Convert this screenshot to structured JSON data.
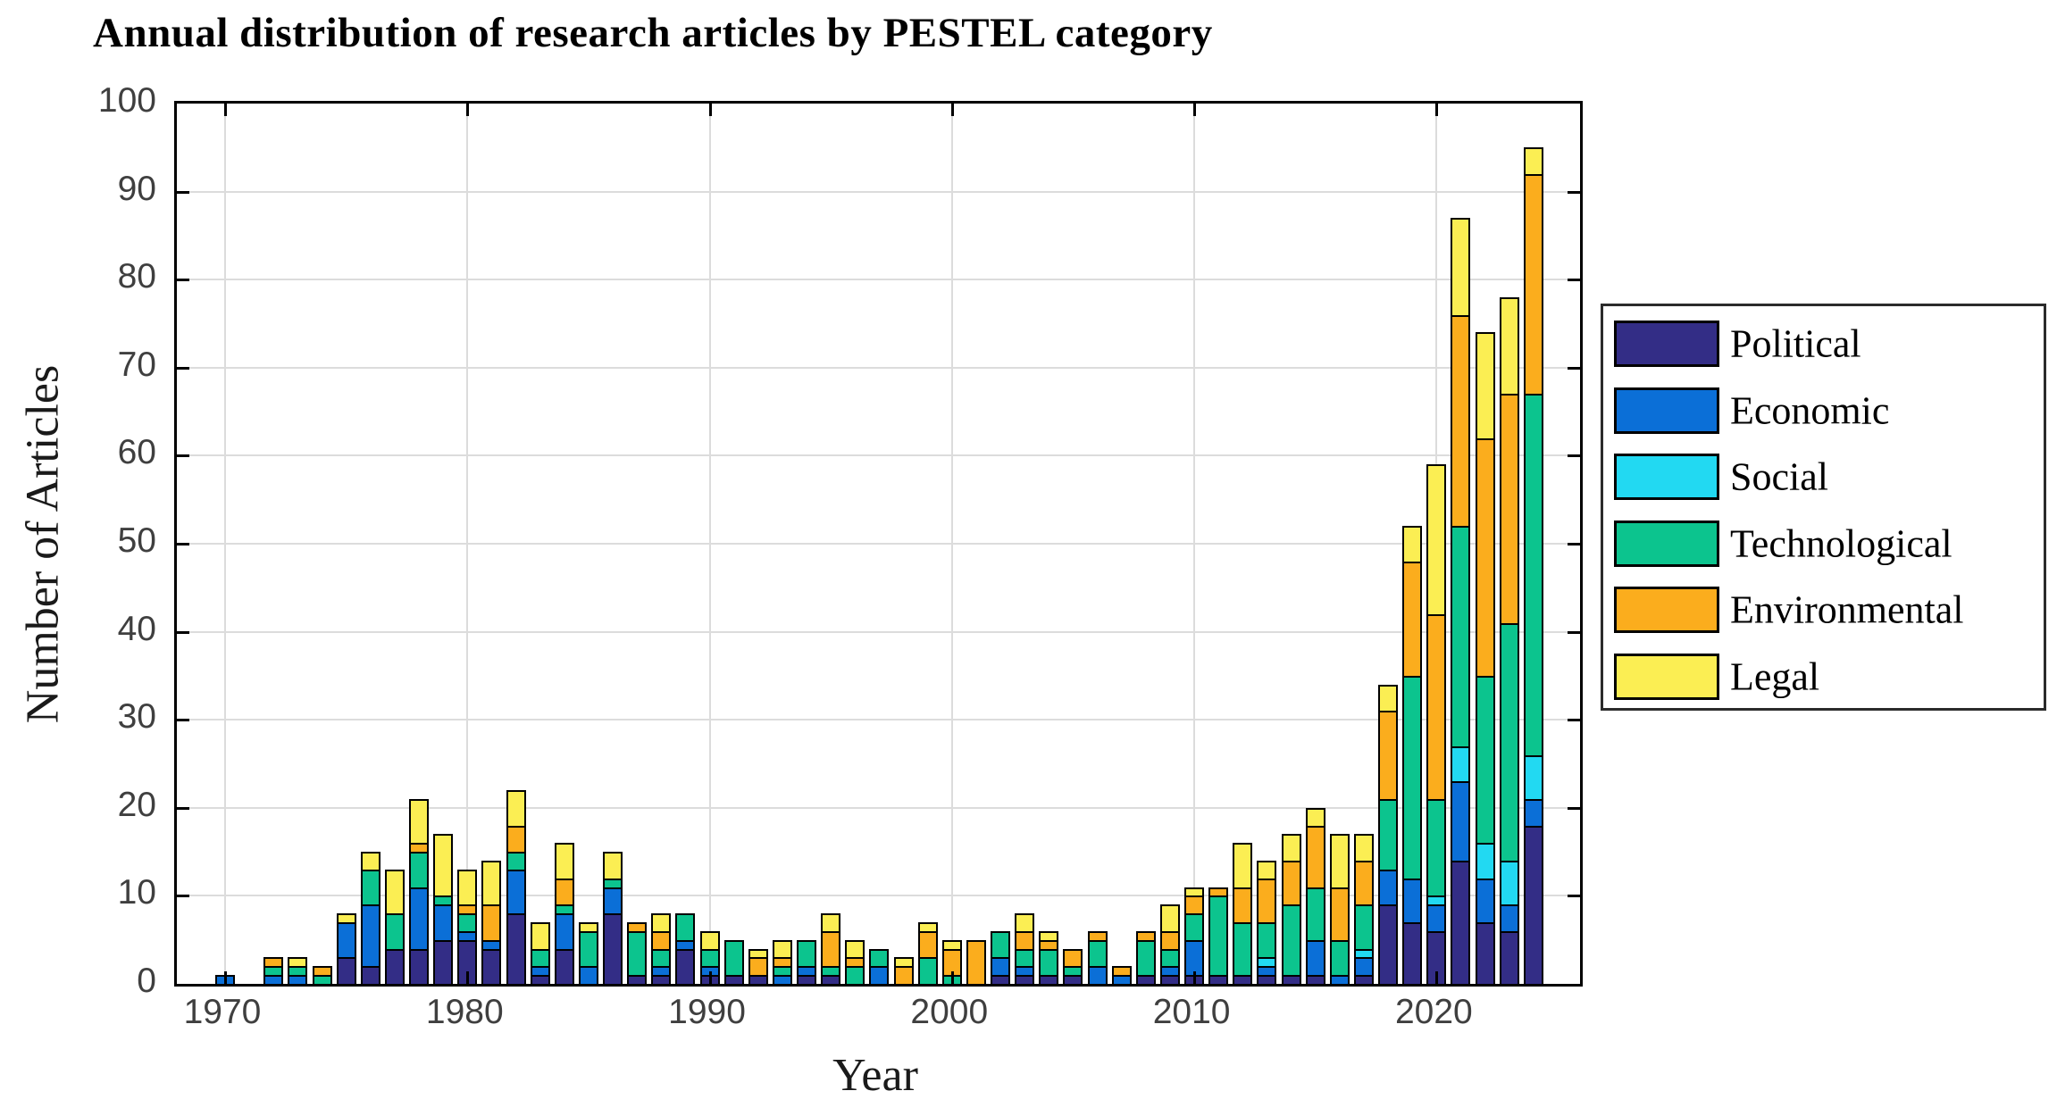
{
  "title": "Annual distribution of research articles by PESTEL category",
  "chart_data": {
    "type": "bar",
    "stacked": true,
    "title": "Annual distribution of research articles by PESTEL category",
    "xlabel": "Year",
    "ylabel": "Number of Articles",
    "ylim": [
      0,
      100
    ],
    "yticks": [
      0,
      10,
      20,
      30,
      40,
      50,
      60,
      70,
      80,
      90,
      100
    ],
    "xticks": [
      1970,
      1980,
      1990,
      2000,
      2010,
      2020
    ],
    "grid": true,
    "legend_position": "right-outside",
    "years": [
      1970,
      1971,
      1972,
      1973,
      1974,
      1975,
      1976,
      1977,
      1978,
      1979,
      1980,
      1981,
      1982,
      1983,
      1984,
      1985,
      1986,
      1987,
      1988,
      1989,
      1990,
      1991,
      1992,
      1993,
      1994,
      1995,
      1996,
      1997,
      1998,
      1999,
      2000,
      2001,
      2002,
      2003,
      2004,
      2005,
      2006,
      2007,
      2008,
      2009,
      2010,
      2011,
      2012,
      2013,
      2014,
      2015,
      2016,
      2017,
      2018,
      2019,
      2020,
      2021,
      2022,
      2023,
      2024
    ],
    "series": [
      {
        "name": "Political",
        "color": "#332d86",
        "values": [
          0,
          0,
          0,
          0,
          0,
          3,
          2,
          4,
          4,
          5,
          5,
          4,
          8,
          1,
          4,
          0,
          8,
          1,
          1,
          4,
          1,
          1,
          1,
          0,
          1,
          1,
          0,
          0,
          0,
          0,
          0,
          0,
          1,
          1,
          1,
          1,
          0,
          0,
          1,
          1,
          1,
          1,
          1,
          1,
          1,
          1,
          0,
          1,
          9,
          7,
          6,
          14,
          7,
          6,
          18
        ]
      },
      {
        "name": "Economic",
        "color": "#0b6fd7",
        "values": [
          1,
          0,
          1,
          1,
          0,
          4,
          7,
          0,
          7,
          4,
          1,
          1,
          5,
          1,
          4,
          2,
          3,
          0,
          1,
          1,
          1,
          0,
          0,
          1,
          1,
          0,
          0,
          2,
          0,
          0,
          0,
          0,
          2,
          1,
          0,
          0,
          2,
          1,
          0,
          1,
          4,
          0,
          0,
          1,
          0,
          4,
          1,
          2,
          4,
          5,
          3,
          9,
          5,
          3,
          3
        ]
      },
      {
        "name": "Social",
        "color": "#22d9f2",
        "values": [
          0,
          0,
          0,
          0,
          0,
          0,
          0,
          0,
          0,
          0,
          0,
          0,
          0,
          0,
          0,
          0,
          0,
          0,
          0,
          0,
          0,
          0,
          0,
          0,
          0,
          0,
          0,
          0,
          0,
          0,
          0,
          0,
          0,
          0,
          0,
          0,
          0,
          0,
          0,
          0,
          0,
          0,
          0,
          1,
          0,
          0,
          0,
          1,
          0,
          0,
          1,
          4,
          4,
          5,
          5
        ]
      },
      {
        "name": "Technological",
        "color": "#0cc48e",
        "values": [
          0,
          0,
          1,
          1,
          1,
          0,
          4,
          4,
          4,
          1,
          2,
          0,
          2,
          2,
          1,
          4,
          1,
          5,
          2,
          3,
          2,
          4,
          0,
          1,
          3,
          1,
          2,
          2,
          0,
          3,
          1,
          0,
          3,
          2,
          3,
          1,
          3,
          0,
          4,
          2,
          3,
          9,
          6,
          4,
          8,
          6,
          4,
          5,
          8,
          23,
          11,
          25,
          19,
          27,
          41
        ]
      },
      {
        "name": "Environmental",
        "color": "#fbad1d",
        "values": [
          0,
          0,
          1,
          0,
          1,
          0,
          0,
          0,
          1,
          0,
          1,
          4,
          3,
          0,
          3,
          0,
          0,
          1,
          2,
          0,
          0,
          0,
          2,
          1,
          0,
          4,
          1,
          0,
          2,
          3,
          3,
          5,
          0,
          2,
          1,
          2,
          1,
          1,
          1,
          2,
          2,
          1,
          4,
          5,
          5,
          7,
          6,
          5,
          10,
          13,
          21,
          24,
          27,
          26,
          25
        ]
      },
      {
        "name": "Legal",
        "color": "#fbee53",
        "values": [
          0,
          0,
          0,
          1,
          0,
          1,
          2,
          5,
          5,
          7,
          4,
          5,
          4,
          3,
          4,
          1,
          3,
          0,
          2,
          0,
          2,
          0,
          1,
          2,
          0,
          2,
          2,
          0,
          1,
          1,
          1,
          0,
          0,
          2,
          1,
          0,
          0,
          0,
          0,
          3,
          1,
          0,
          5,
          2,
          3,
          2,
          6,
          3,
          3,
          4,
          17,
          11,
          12,
          11,
          3
        ]
      }
    ]
  },
  "legend": {
    "items": [
      "Political",
      "Economic",
      "Social",
      "Technological",
      "Environmental",
      "Legal"
    ]
  }
}
